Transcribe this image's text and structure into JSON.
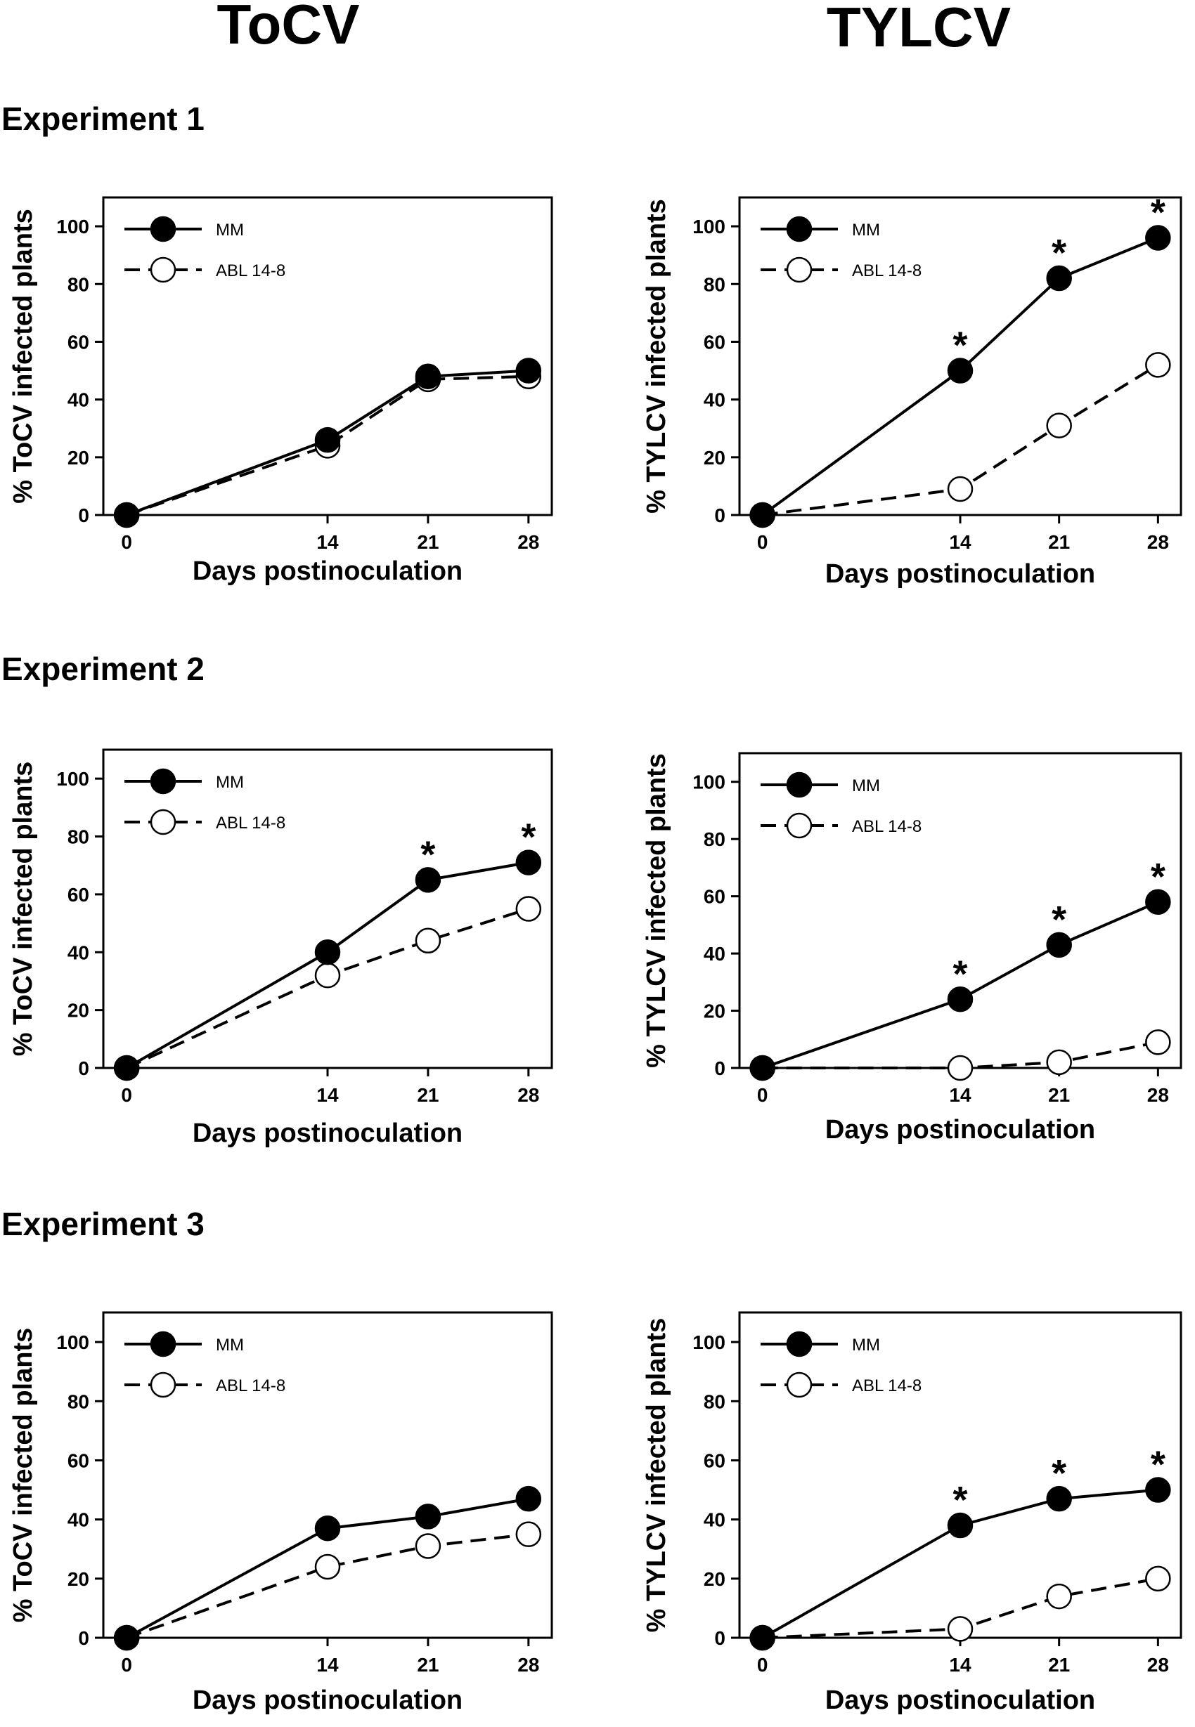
{
  "columns": [
    "ToCV",
    "TYLCV"
  ],
  "experiments": [
    "Experiment 1",
    "Experiment 2",
    "Experiment 3"
  ],
  "colors": {
    "line": "#000000",
    "open_fill": "#ffffff",
    "filled": "#000000"
  },
  "chart_data": [
    {
      "id": "exp1-tocv",
      "type": "line",
      "experiment": "Experiment 1",
      "virus": "ToCV",
      "x": [
        0,
        14,
        21,
        28
      ],
      "xlabel": "Days postinoculation",
      "ylabel": "% ToCV infected plants",
      "ylim": [
        0,
        110
      ],
      "yticks": [
        0,
        20,
        40,
        60,
        80,
        100
      ],
      "legend": "top-left",
      "series": [
        {
          "name": "MM",
          "style": "solid-filled",
          "values": [
            0,
            26,
            48,
            50
          ]
        },
        {
          "name": "ABL 14-8",
          "style": "dashed-open",
          "values": [
            0,
            24,
            47,
            48
          ]
        }
      ],
      "significant": []
    },
    {
      "id": "exp1-tylcv",
      "type": "line",
      "experiment": "Experiment 1",
      "virus": "TYLCV",
      "x": [
        0,
        14,
        21,
        28
      ],
      "xlabel": "Days postinoculation",
      "ylabel": "% TYLCV infected plants",
      "ylim": [
        0,
        110
      ],
      "yticks": [
        0,
        20,
        40,
        60,
        80,
        100
      ],
      "legend": "top-left",
      "series": [
        {
          "name": "MM",
          "style": "solid-filled",
          "values": [
            0,
            50,
            82,
            96
          ]
        },
        {
          "name": "ABL 14-8",
          "style": "dashed-open",
          "values": [
            0,
            9,
            31,
            52
          ]
        }
      ],
      "significant": [
        "*",
        "*",
        "*"
      ]
    },
    {
      "id": "exp2-tocv",
      "type": "line",
      "experiment": "Experiment 2",
      "virus": "ToCV",
      "x": [
        0,
        14,
        21,
        28
      ],
      "xlabel": "Days postinoculation",
      "ylabel": "% ToCV infected plants",
      "ylim": [
        0,
        110
      ],
      "yticks": [
        0,
        20,
        40,
        60,
        80,
        100
      ],
      "legend": "top-left",
      "series": [
        {
          "name": "MM",
          "style": "solid-filled",
          "values": [
            0,
            40,
            65,
            71
          ]
        },
        {
          "name": "ABL 14-8",
          "style": "dashed-open",
          "values": [
            0,
            32,
            44,
            55
          ]
        }
      ],
      "significant": [
        "*",
        "*"
      ]
    },
    {
      "id": "exp2-tylcv",
      "type": "line",
      "experiment": "Experiment 2",
      "virus": "TYLCV",
      "x": [
        0,
        14,
        21,
        28
      ],
      "xlabel": "Days postinoculation",
      "ylabel": "% TYLCV infected plants",
      "ylim": [
        0,
        110
      ],
      "yticks": [
        0,
        20,
        40,
        60,
        80,
        100
      ],
      "legend": "top-left",
      "series": [
        {
          "name": "MM",
          "style": "solid-filled",
          "values": [
            0,
            24,
            43,
            58
          ]
        },
        {
          "name": "ABL 14-8",
          "style": "dashed-open",
          "values": [
            0,
            0,
            2,
            9
          ]
        }
      ],
      "significant": [
        "*",
        "*",
        "*"
      ]
    },
    {
      "id": "exp3-tocv",
      "type": "line",
      "experiment": "Experiment 3",
      "virus": "ToCV",
      "x": [
        0,
        14,
        21,
        28
      ],
      "xlabel": "Days postinoculation",
      "ylabel": "% ToCV infected plants",
      "ylim": [
        0,
        110
      ],
      "yticks": [
        0,
        20,
        40,
        60,
        80,
        100
      ],
      "legend": "top-left",
      "series": [
        {
          "name": "MM",
          "style": "solid-filled",
          "values": [
            0,
            37,
            41,
            47
          ]
        },
        {
          "name": "ABL 14-8",
          "style": "dashed-open",
          "values": [
            0,
            24,
            31,
            35
          ]
        }
      ],
      "significant": []
    },
    {
      "id": "exp3-tylcv",
      "type": "line",
      "experiment": "Experiment 3",
      "virus": "TYLCV",
      "x": [
        0,
        14,
        21,
        28
      ],
      "xlabel": "Days postinoculation",
      "ylabel": "% TYLCV infected plants",
      "ylim": [
        0,
        110
      ],
      "yticks": [
        0,
        20,
        40,
        60,
        80,
        100
      ],
      "legend": "top-left",
      "series": [
        {
          "name": "MM",
          "style": "solid-filled",
          "values": [
            0,
            38,
            47,
            50
          ]
        },
        {
          "name": "ABL 14-8",
          "style": "dashed-open",
          "values": [
            0,
            3,
            14,
            20
          ]
        }
      ],
      "significant": [
        "*",
        "*",
        "*"
      ]
    }
  ]
}
